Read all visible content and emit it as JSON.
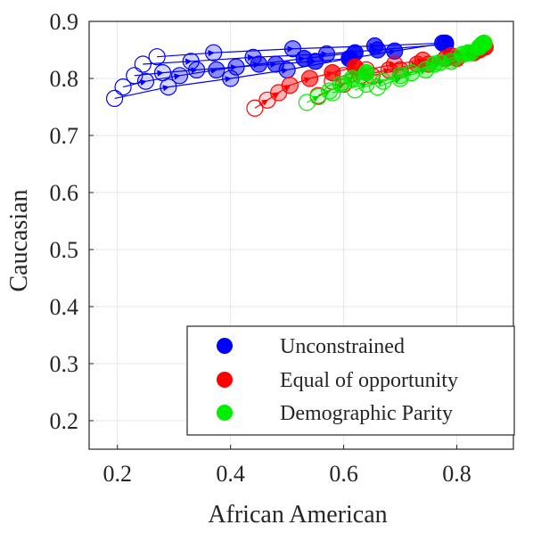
{
  "chart_data": {
    "type": "scatter",
    "xlabel": "African American",
    "ylabel": "Caucasian",
    "xlim": [
      0.15,
      0.9
    ],
    "ylim": [
      0.15,
      0.9
    ],
    "xticks": [
      "0.2",
      "0.4",
      "0.6",
      "0.8"
    ],
    "yticks": [
      "0.2",
      "0.3",
      "0.4",
      "0.5",
      "0.6",
      "0.7",
      "0.8",
      "0.9"
    ],
    "grid": true,
    "legend_position": "bottom-right",
    "series": [
      {
        "name": "Unconstrained",
        "color": "#0000ff",
        "trajectories": [
          [
            [
              0.195,
              0.765
            ],
            [
              0.29,
              0.785
            ],
            [
              0.4,
              0.8
            ],
            [
              0.5,
              0.815
            ],
            [
              0.61,
              0.835
            ],
            [
              0.69,
              0.848
            ],
            [
              0.78,
              0.862
            ]
          ],
          [
            [
              0.21,
              0.785
            ],
            [
              0.25,
              0.795
            ],
            [
              0.31,
              0.805
            ],
            [
              0.375,
              0.815
            ],
            [
              0.45,
              0.825
            ],
            [
              0.53,
              0.835
            ],
            [
              0.62,
              0.845
            ]
          ],
          [
            [
              0.23,
              0.805
            ],
            [
              0.28,
              0.81
            ],
            [
              0.34,
              0.815
            ],
            [
              0.41,
              0.82
            ],
            [
              0.48,
              0.825
            ],
            [
              0.55,
              0.83
            ],
            [
              0.61,
              0.835
            ]
          ],
          [
            [
              0.245,
              0.825
            ],
            [
              0.33,
              0.83
            ],
            [
              0.44,
              0.837
            ],
            [
              0.57,
              0.843
            ],
            [
              0.66,
              0.85
            ],
            [
              0.78,
              0.86
            ]
          ],
          [
            [
              0.27,
              0.838
            ],
            [
              0.37,
              0.845
            ],
            [
              0.51,
              0.852
            ],
            [
              0.655,
              0.857
            ],
            [
              0.775,
              0.862
            ]
          ]
        ]
      },
      {
        "name": "Equal of opportunity",
        "color": "#ff0000",
        "trajectories": [
          [
            [
              0.443,
              0.748
            ],
            [
              0.465,
              0.762
            ],
            [
              0.485,
              0.775
            ],
            [
              0.505,
              0.788
            ],
            [
              0.54,
              0.8
            ],
            [
              0.58,
              0.81
            ],
            [
              0.62,
              0.82
            ]
          ],
          [
            [
              0.555,
              0.77
            ],
            [
              0.6,
              0.79
            ],
            [
              0.65,
              0.805
            ],
            [
              0.7,
              0.815
            ],
            [
              0.75,
              0.825
            ],
            [
              0.8,
              0.835
            ],
            [
              0.85,
              0.855
            ]
          ],
          [
            [
              0.58,
              0.795
            ],
            [
              0.63,
              0.805
            ],
            [
              0.68,
              0.815
            ],
            [
              0.73,
              0.825
            ],
            [
              0.78,
              0.835
            ],
            [
              0.83,
              0.845
            ]
          ],
          [
            [
              0.6,
              0.805
            ],
            [
              0.64,
              0.815
            ],
            [
              0.69,
              0.825
            ],
            [
              0.74,
              0.832
            ],
            [
              0.79,
              0.84
            ],
            [
              0.84,
              0.85
            ]
          ]
        ]
      },
      {
        "name": "Demographic Parity",
        "color": "#00ee00",
        "trajectories": [
          [
            [
              0.535,
              0.758
            ],
            [
              0.555,
              0.768
            ],
            [
              0.575,
              0.778
            ],
            [
              0.595,
              0.79
            ],
            [
              0.615,
              0.8
            ],
            [
              0.64,
              0.81
            ]
          ],
          [
            [
              0.58,
              0.775
            ],
            [
              0.64,
              0.79
            ],
            [
              0.7,
              0.805
            ],
            [
              0.76,
              0.825
            ],
            [
              0.82,
              0.845
            ],
            [
              0.848,
              0.862
            ]
          ],
          [
            [
              0.62,
              0.78
            ],
            [
              0.67,
              0.795
            ],
            [
              0.72,
              0.81
            ],
            [
              0.77,
              0.828
            ],
            [
              0.81,
              0.842
            ],
            [
              0.84,
              0.855
            ]
          ],
          [
            [
              0.66,
              0.785
            ],
            [
              0.7,
              0.8
            ],
            [
              0.745,
              0.815
            ],
            [
              0.79,
              0.83
            ],
            [
              0.825,
              0.845
            ],
            [
              0.845,
              0.86
            ]
          ]
        ]
      }
    ]
  }
}
